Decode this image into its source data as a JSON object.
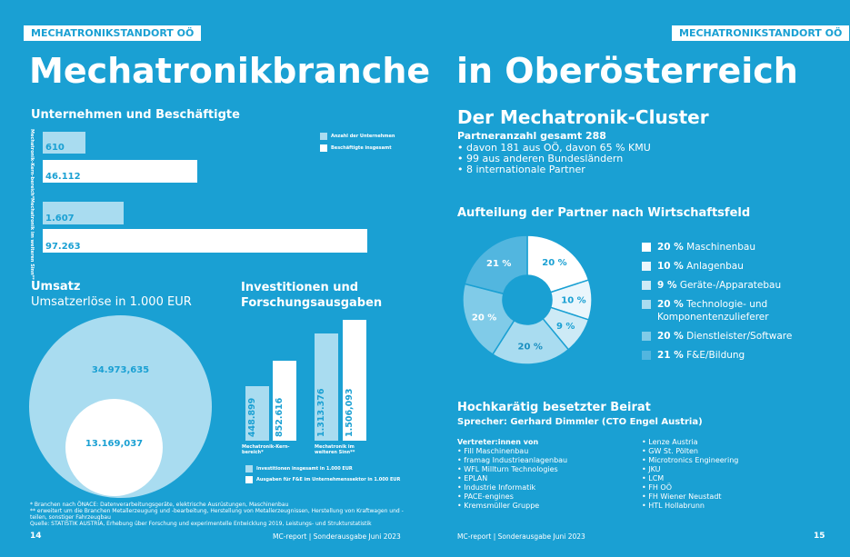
{
  "header": {
    "left_tag": "MECHATRONIKSTANDORT OÖ",
    "right_tag": "MECHATRONIKSTANDORT OÖ",
    "title_left": "Mechatronikbranche",
    "title_right": "in Oberösterreich"
  },
  "employment": {
    "title": "Unternehmen und Beschäftigte",
    "legend": [
      "Anzahl der Unternehmen",
      "Beschäftigte insgesamt"
    ],
    "groups": [
      {
        "label": "Mechatronik-Kern-bereich*",
        "companies": "610",
        "employees": "46.112"
      },
      {
        "label": "Mechatronik im weiteren Sinn**",
        "companies": "1.607",
        "employees": "97.263"
      }
    ],
    "colors": {
      "companies": "#a9dcf0",
      "employees": "#ffffff"
    }
  },
  "revenue": {
    "title": "Umsatz",
    "subtitle": "Umsatzerlöse in 1.000 EUR",
    "outer_value": "34.973,635",
    "inner_value": "13.169,037"
  },
  "investment": {
    "title_line1": "Investitionen und",
    "title_line2": "Forschungsausgaben",
    "groups": [
      {
        "label_line1": "Mechatronik-Kern-",
        "label_line2": "bereich*",
        "invest": "448.899",
        "rd": "852.616"
      },
      {
        "label_line1": "Mechatronik im",
        "label_line2": "weiteren Sinn**",
        "invest": "1.313.376",
        "rd": "1.506,093"
      }
    ],
    "legend": [
      "Investitionen insgesamt in 1.000 EUR",
      "Ausgaben für F&E im Unternehmenssektor in 1.000 EUR"
    ]
  },
  "footnotes": {
    "line1": "* Branchen nach ÖNACE: Datenverarbeitungsgeräte, elektrische Ausrüstungen, Maschinenbau",
    "line2": "** erweitert um die Branchen Metallerzeugung und -bearbeitung, Herstellung von Metallerzeugnissen, Herstellung von Kraftwagen und -teilen, sonstiger Fahrzeugbau",
    "line3": "Quelle: STATISTIK AUSTRIA, Erhebung über Forschung und experimentelle Entwicklung 2019, Leistungs- und Strukturstatistik"
  },
  "cluster": {
    "title": "Der Mechatronik-Cluster",
    "subtitle": "Partneranzahl gesamt 288",
    "items": [
      "davon 181 aus OÖ, davon 65 % KMU",
      "99 aus anderen Bundesländern",
      "8 internationale Partner"
    ]
  },
  "chart_data": {
    "type": "pie",
    "title": "Aufteilung der Partner nach Wirtschaftsfeld",
    "slices": [
      {
        "label": "Maschinenbau",
        "value": 20,
        "display": "20 %",
        "color": "#ffffff"
      },
      {
        "label": "Anlagenbau",
        "value": 10,
        "display": "10 %",
        "color": "#eaf6fc"
      },
      {
        "label": "Geräte-/Apparatebau",
        "value": 9,
        "display": "9 %",
        "color": "#cdeaf6"
      },
      {
        "label": "Technologie- und Komponentenzulieferer",
        "value": 20,
        "display": "20 %",
        "color": "#a9dcf0"
      },
      {
        "label": "Dienstleister/Software",
        "value": 20,
        "display": "20 %",
        "color": "#80cbe8"
      },
      {
        "label": "F&E/Bildung",
        "value": 21,
        "display": "21 %",
        "color": "#52b6df"
      }
    ],
    "legend": [
      {
        "pct": "20 %",
        "line1": "Maschinenbau",
        "line2": ""
      },
      {
        "pct": "10 %",
        "line1": "Anlagenbau",
        "line2": ""
      },
      {
        "pct": "9 %",
        "line1": "Geräte-/Apparatebau",
        "line2": ""
      },
      {
        "pct": "20 %",
        "line1": "Technologie- und",
        "line2": "Komponentenzulieferer"
      },
      {
        "pct": "20 %",
        "line1": "Dienstleister/Software",
        "line2": ""
      },
      {
        "pct": "21 %",
        "line1": "F&E/Bildung",
        "line2": ""
      }
    ]
  },
  "board": {
    "title": "Hochkarätig besetzter Beirat",
    "speaker": "Sprecher: Gerhard Dimmler (CTO Engel Austria)",
    "reps_heading": "Vertreter:innen von",
    "col1": [
      "Fill Maschinenbau",
      "framag Industrieanlagenbau",
      "WFL Millturn Technologies",
      "EPLAN",
      "Industrie Informatik",
      "PACE-engines",
      "Kremsmüller Gruppe"
    ],
    "col2": [
      "Lenze Austria",
      "GW St. Pölten",
      "Microtronics Engineering",
      "JKU",
      "LCM",
      "FH OÖ",
      "FH Wiener Neustadt",
      "HTL Hollabrunn"
    ]
  },
  "footer": {
    "page_left": "14",
    "pub_left": "MC-report | Sonderausgabe Juni 2023",
    "pub_right": "MC-report | Sonderausgabe Juni 2023",
    "page_right": "15"
  }
}
